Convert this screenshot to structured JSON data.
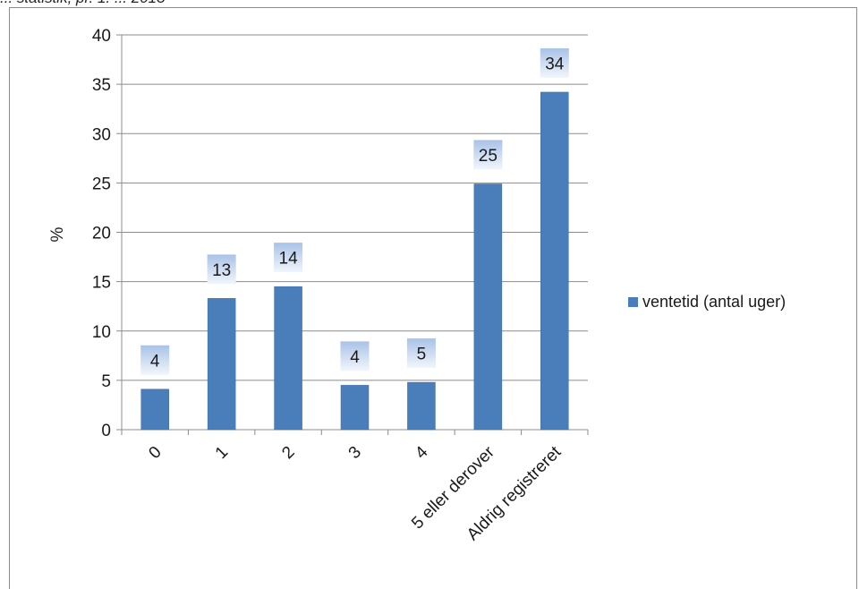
{
  "caption_fragment": "... statistik, pr. 1. ... 2013",
  "chart_data": {
    "type": "bar",
    "categories": [
      "0",
      "1",
      "2",
      "3",
      "4",
      "5 eller derover",
      "Aldrig registreret"
    ],
    "series": [
      {
        "name": "ventetid (antal uger)",
        "values": [
          4.1,
          13.3,
          14.5,
          4.5,
          4.8,
          24.9,
          34.2
        ],
        "data_labels": [
          "4",
          "13",
          "14",
          "4",
          "5",
          "25",
          "34"
        ]
      }
    ],
    "title": "",
    "xlabel": "",
    "ylabel": "%",
    "ylim": [
      0,
      40
    ],
    "yticks": [
      "0",
      "5",
      "10",
      "15",
      "20",
      "25",
      "30",
      "35",
      "40"
    ],
    "grid": "horizontal",
    "legend_position": "right",
    "colors": {
      "bar": "#4a7ebb",
      "bar_edge": "#3a6aa6",
      "label_box": "#c9d8ee",
      "label_box_edge": "#9fb8dc",
      "grid": "#8c8c8c",
      "axis": "#8c8c8c"
    }
  }
}
